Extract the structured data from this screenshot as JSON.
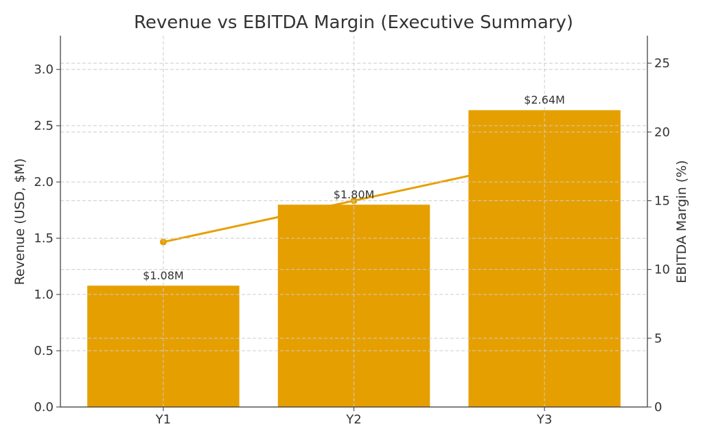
{
  "chart_data": {
    "type": "bar",
    "title": "Revenue vs EBITDA Margin (Executive Summary)",
    "categories": [
      "Y1",
      "Y2",
      "Y3"
    ],
    "series": [
      {
        "name": "Revenue",
        "axis": "left",
        "kind": "bar",
        "values": [
          1.08,
          1.8,
          2.64
        ],
        "labels": [
          "$1.08M",
          "$1.80M",
          "$2.64M"
        ]
      },
      {
        "name": "EBITDA Margin",
        "axis": "right",
        "kind": "line",
        "values": [
          12,
          15,
          18
        ]
      }
    ],
    "xlabel": "",
    "ylabel": "Revenue (USD, $M)",
    "y2label": "EBITDA Margin (%)",
    "ylim": [
      0,
      3.3
    ],
    "y2lim": [
      0,
      27
    ],
    "yticks": [
      "0.0",
      "0.5",
      "1.0",
      "1.5",
      "2.0",
      "2.5",
      "3.0"
    ],
    "y2ticks": [
      "0",
      "5",
      "10",
      "15",
      "20",
      "25"
    ],
    "grid": true,
    "colors": {
      "bar": "#E69F00",
      "line": "#E69F00",
      "grid": "#cccccc",
      "text": "#333333"
    }
  }
}
